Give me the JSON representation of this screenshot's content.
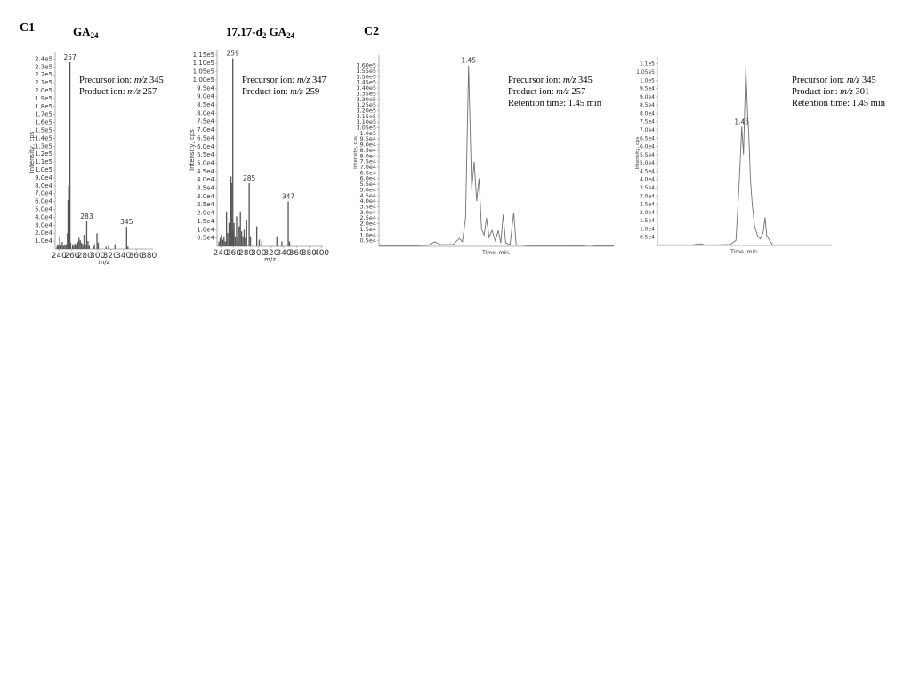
{
  "panels": {
    "c1": {
      "label": "C1"
    },
    "c2": {
      "label": "C2"
    }
  },
  "titles": {
    "ga24": {
      "main": "GA",
      "sub": "24"
    },
    "d2ga24": {
      "prefix": "17,17-d",
      "sub1": "2",
      "mid": " GA",
      "sub2": "24"
    }
  },
  "annotations": [
    {
      "lines": [
        {
          "prefix": "Precursor ion: ",
          "em": "m/z",
          "value": " 345"
        },
        {
          "prefix": "Product ion: ",
          "em": "m/z",
          "value": " 257"
        }
      ]
    },
    {
      "lines": [
        {
          "prefix": "Precursor ion: ",
          "em": "m/z",
          "value": " 347"
        },
        {
          "prefix": "Product ion: ",
          "em": "m/z",
          "value": " 259"
        }
      ]
    },
    {
      "lines": [
        {
          "prefix": "Precursor ion: ",
          "em": "m/z",
          "value": " 345"
        },
        {
          "prefix": "Product ion: ",
          "em": "m/z",
          "value": " 257"
        },
        {
          "prefix": "Retention time: 1.45 min",
          "em": "",
          "value": ""
        }
      ]
    },
    {
      "lines": [
        {
          "prefix": "Precursor ion: ",
          "em": "m/z",
          "value": " 345"
        },
        {
          "prefix": "Product ion: ",
          "em": "m/z",
          "value": " 301"
        },
        {
          "prefix": "Retention time: 1.45 min",
          "em": "",
          "value": ""
        }
      ]
    }
  ],
  "chart_data": [
    {
      "type": "bar",
      "color": "#555555",
      "xlabel": "m/z",
      "ylabel": "Intensity, cps",
      "xlim": [
        234,
        386
      ],
      "ylim": [
        0,
        245000
      ],
      "x_ticks": [
        240,
        260,
        280,
        300,
        320,
        340,
        360,
        380
      ],
      "y_ticks": [
        {
          "v": 10000,
          "label": "1.0e4"
        },
        {
          "v": 20000,
          "label": "2.0e4"
        },
        {
          "v": 30000,
          "label": "3.0e4"
        },
        {
          "v": 40000,
          "label": "4.0e4"
        },
        {
          "v": 50000,
          "label": "5.0e4"
        },
        {
          "v": 60000,
          "label": "6.0e4"
        },
        {
          "v": 70000,
          "label": "7.0e4"
        },
        {
          "v": 80000,
          "label": "8.0e4"
        },
        {
          "v": 90000,
          "label": "9.0e4"
        },
        {
          "v": 100000,
          "label": "1.0e5"
        },
        {
          "v": 110000,
          "label": "1.1e5"
        },
        {
          "v": 120000,
          "label": "1.2e5"
        },
        {
          "v": 130000,
          "label": "1.3e5"
        },
        {
          "v": 140000,
          "label": "1.4e5"
        },
        {
          "v": 150000,
          "label": "1.5e5"
        },
        {
          "v": 160000,
          "label": "1.6e5"
        },
        {
          "v": 170000,
          "label": "1.7e5"
        },
        {
          "v": 180000,
          "label": "1.8e5"
        },
        {
          "v": 190000,
          "label": "1.9e5"
        },
        {
          "v": 200000,
          "label": "2.0e5"
        },
        {
          "v": 210000,
          "label": "2.1e5"
        },
        {
          "v": 220000,
          "label": "2.2e5"
        },
        {
          "v": 230000,
          "label": "2.3e5"
        },
        {
          "v": 240000,
          "label": "2.4e5"
        }
      ],
      "peaks": [
        {
          "x": 237,
          "y": 3000
        },
        {
          "x": 238,
          "y": 6000
        },
        {
          "x": 239,
          "y": 4000
        },
        {
          "x": 241,
          "y": 16000
        },
        {
          "x": 243,
          "y": 5000
        },
        {
          "x": 245,
          "y": 9000
        },
        {
          "x": 247,
          "y": 4000
        },
        {
          "x": 249,
          "y": 5000
        },
        {
          "x": 251,
          "y": 6000
        },
        {
          "x": 253,
          "y": 20000
        },
        {
          "x": 254,
          "y": 62000
        },
        {
          "x": 255,
          "y": 80000
        },
        {
          "x": 256,
          "y": 12000
        },
        {
          "x": 257,
          "y": 236000
        },
        {
          "x": 258,
          "y": 8000
        },
        {
          "x": 261,
          "y": 6000
        },
        {
          "x": 263,
          "y": 4000
        },
        {
          "x": 265,
          "y": 7000
        },
        {
          "x": 267,
          "y": 5000
        },
        {
          "x": 269,
          "y": 9000
        },
        {
          "x": 271,
          "y": 14000
        },
        {
          "x": 273,
          "y": 11000
        },
        {
          "x": 275,
          "y": 8000
        },
        {
          "x": 277,
          "y": 6000
        },
        {
          "x": 279,
          "y": 18000
        },
        {
          "x": 281,
          "y": 5000
        },
        {
          "x": 283,
          "y": 35000
        },
        {
          "x": 285,
          "y": 10000
        },
        {
          "x": 287,
          "y": 4000
        },
        {
          "x": 293,
          "y": 3000
        },
        {
          "x": 295,
          "y": 6000
        },
        {
          "x": 299,
          "y": 20000
        },
        {
          "x": 301,
          "y": 8000
        },
        {
          "x": 313,
          "y": 3000
        },
        {
          "x": 317,
          "y": 4000
        },
        {
          "x": 327,
          "y": 6000
        },
        {
          "x": 345,
          "y": 28000
        },
        {
          "x": 347,
          "y": 3000
        }
      ],
      "peak_labels": [
        {
          "x": 257,
          "y": 236000,
          "text": "257"
        },
        {
          "x": 283,
          "y": 35000,
          "text": "283"
        },
        {
          "x": 345,
          "y": 28000,
          "text": "345"
        }
      ]
    },
    {
      "type": "bar",
      "color": "#555555",
      "xlabel": "m/z",
      "ylabel": "Intensity, cps",
      "xlim": [
        234,
        402
      ],
      "ylim": [
        0,
        116000
      ],
      "x_ticks": [
        240,
        260,
        280,
        300,
        320,
        340,
        360,
        380,
        400
      ],
      "y_ticks": [
        {
          "v": 5000,
          "label": "0.5e4"
        },
        {
          "v": 10000,
          "label": "1.0e4"
        },
        {
          "v": 15000,
          "label": "1.5e4"
        },
        {
          "v": 20000,
          "label": "2.0e4"
        },
        {
          "v": 25000,
          "label": "2.5e4"
        },
        {
          "v": 30000,
          "label": "3.0e4"
        },
        {
          "v": 35000,
          "label": "3.5e4"
        },
        {
          "v": 40000,
          "label": "4.0e4"
        },
        {
          "v": 45000,
          "label": "4.5e4"
        },
        {
          "v": 50000,
          "label": "5.0e4"
        },
        {
          "v": 55000,
          "label": "5.5e4"
        },
        {
          "v": 60000,
          "label": "6.0e4"
        },
        {
          "v": 65000,
          "label": "6.5e4"
        },
        {
          "v": 70000,
          "label": "7.0e4"
        },
        {
          "v": 75000,
          "label": "7.5e4"
        },
        {
          "v": 80000,
          "label": "8.0e4"
        },
        {
          "v": 85000,
          "label": "8.5e4"
        },
        {
          "v": 90000,
          "label": "9.0e4"
        },
        {
          "v": 95000,
          "label": "9.5e4"
        },
        {
          "v": 100000,
          "label": "1.00e5"
        },
        {
          "v": 105000,
          "label": "1.05e5"
        },
        {
          "v": 110000,
          "label": "1.10e5"
        },
        {
          "v": 115000,
          "label": "1.15e5"
        }
      ],
      "peaks": [
        {
          "x": 237,
          "y": 3000
        },
        {
          "x": 239,
          "y": 5000
        },
        {
          "x": 241,
          "y": 7000
        },
        {
          "x": 243,
          "y": 4000
        },
        {
          "x": 245,
          "y": 6000
        },
        {
          "x": 247,
          "y": 3000
        },
        {
          "x": 249,
          "y": 21000
        },
        {
          "x": 251,
          "y": 8000
        },
        {
          "x": 253,
          "y": 14000
        },
        {
          "x": 255,
          "y": 31000
        },
        {
          "x": 256,
          "y": 42000
        },
        {
          "x": 257,
          "y": 38000
        },
        {
          "x": 258,
          "y": 11000
        },
        {
          "x": 259,
          "y": 113000
        },
        {
          "x": 260,
          "y": 9000
        },
        {
          "x": 261,
          "y": 14000
        },
        {
          "x": 263,
          "y": 6000
        },
        {
          "x": 265,
          "y": 18000
        },
        {
          "x": 267,
          "y": 5000
        },
        {
          "x": 269,
          "y": 12000
        },
        {
          "x": 271,
          "y": 21000
        },
        {
          "x": 273,
          "y": 9000
        },
        {
          "x": 275,
          "y": 6000
        },
        {
          "x": 277,
          "y": 10000
        },
        {
          "x": 279,
          "y": 5000
        },
        {
          "x": 281,
          "y": 16000
        },
        {
          "x": 285,
          "y": 38000
        },
        {
          "x": 287,
          "y": 6000
        },
        {
          "x": 297,
          "y": 12000
        },
        {
          "x": 301,
          "y": 4000
        },
        {
          "x": 305,
          "y": 3000
        },
        {
          "x": 329,
          "y": 6000
        },
        {
          "x": 337,
          "y": 3000
        },
        {
          "x": 347,
          "y": 27000
        },
        {
          "x": 349,
          "y": 3000
        }
      ],
      "peak_labels": [
        {
          "x": 259,
          "y": 113000,
          "text": "259"
        },
        {
          "x": 285,
          "y": 38000,
          "text": "285"
        },
        {
          "x": 347,
          "y": 27000,
          "text": "347"
        }
      ]
    },
    {
      "type": "line",
      "color": "#707070",
      "xlabel": "Time, min.",
      "ylabel": "Intensity, cps",
      "xlim": [
        0.0,
        3.8
      ],
      "ylim": [
        0,
        166000
      ],
      "x_ticks": [],
      "y_ticks": [
        {
          "v": 5000,
          "label": "0.5e4"
        },
        {
          "v": 10000,
          "label": "1.0e4"
        },
        {
          "v": 15000,
          "label": "1.5e4"
        },
        {
          "v": 20000,
          "label": "2.0e4"
        },
        {
          "v": 25000,
          "label": "2.5e4"
        },
        {
          "v": 30000,
          "label": "3.0e4"
        },
        {
          "v": 35000,
          "label": "3.5e4"
        },
        {
          "v": 40000,
          "label": "4.0e4"
        },
        {
          "v": 45000,
          "label": "4.5e4"
        },
        {
          "v": 50000,
          "label": "5.0e4"
        },
        {
          "v": 55000,
          "label": "5.5e4"
        },
        {
          "v": 60000,
          "label": "6.0e4"
        },
        {
          "v": 65000,
          "label": "6.5e4"
        },
        {
          "v": 70000,
          "label": "7.0e4"
        },
        {
          "v": 75000,
          "label": "7.5e4"
        },
        {
          "v": 80000,
          "label": "8.0e4"
        },
        {
          "v": 85000,
          "label": "8.5e4"
        },
        {
          "v": 90000,
          "label": "9.0e4"
        },
        {
          "v": 95000,
          "label": "9.5e4"
        },
        {
          "v": 100000,
          "label": "1.0e5"
        },
        {
          "v": 105000,
          "label": "1.05e5"
        },
        {
          "v": 110000,
          "label": "1.10e5"
        },
        {
          "v": 115000,
          "label": "1.15e5"
        },
        {
          "v": 120000,
          "label": "1.20e5"
        },
        {
          "v": 125000,
          "label": "1.25e5"
        },
        {
          "v": 130000,
          "label": "1.30e5"
        },
        {
          "v": 135000,
          "label": "1.35e5"
        },
        {
          "v": 140000,
          "label": "1.40e5"
        },
        {
          "v": 145000,
          "label": "1.45e5"
        },
        {
          "v": 150000,
          "label": "1.50e5"
        },
        {
          "v": 155000,
          "label": "1.55e5"
        },
        {
          "v": 160000,
          "label": "1.60e5"
        }
      ],
      "points": [
        {
          "x": 0.0,
          "y": 600
        },
        {
          "x": 0.6,
          "y": 600
        },
        {
          "x": 0.8,
          "y": 1000
        },
        {
          "x": 0.9,
          "y": 4000
        },
        {
          "x": 1.0,
          "y": 1500
        },
        {
          "x": 1.2,
          "y": 1500
        },
        {
          "x": 1.3,
          "y": 7000
        },
        {
          "x": 1.35,
          "y": 4000
        },
        {
          "x": 1.4,
          "y": 25000
        },
        {
          "x": 1.45,
          "y": 160000
        },
        {
          "x": 1.5,
          "y": 50000
        },
        {
          "x": 1.54,
          "y": 75000
        },
        {
          "x": 1.58,
          "y": 40000
        },
        {
          "x": 1.62,
          "y": 60000
        },
        {
          "x": 1.66,
          "y": 15000
        },
        {
          "x": 1.7,
          "y": 10000
        },
        {
          "x": 1.74,
          "y": 25000
        },
        {
          "x": 1.78,
          "y": 8000
        },
        {
          "x": 1.83,
          "y": 14000
        },
        {
          "x": 1.88,
          "y": 5000
        },
        {
          "x": 1.93,
          "y": 14000
        },
        {
          "x": 1.97,
          "y": 3000
        },
        {
          "x": 2.01,
          "y": 28000
        },
        {
          "x": 2.05,
          "y": 3000
        },
        {
          "x": 2.12,
          "y": 1500
        },
        {
          "x": 2.18,
          "y": 30000
        },
        {
          "x": 2.22,
          "y": 1500
        },
        {
          "x": 2.4,
          "y": 700
        },
        {
          "x": 3.3,
          "y": 600
        },
        {
          "x": 3.4,
          "y": 1200
        },
        {
          "x": 3.5,
          "y": 600
        },
        {
          "x": 3.8,
          "y": 600
        }
      ],
      "peak_labels": [
        {
          "x": 1.45,
          "y": 160000,
          "text": "1.45"
        }
      ]
    },
    {
      "type": "line",
      "color": "#707070",
      "xlabel": "Time, min.",
      "ylabel": "Intensity, cps",
      "xlim": [
        0.0,
        3.0
      ],
      "ylim": [
        0,
        112000
      ],
      "x_ticks": [],
      "y_ticks": [
        {
          "v": 5000,
          "label": "0.5e4"
        },
        {
          "v": 10000,
          "label": "1.0e4"
        },
        {
          "v": 15000,
          "label": "1.5e4"
        },
        {
          "v": 20000,
          "label": "2.0e4"
        },
        {
          "v": 25000,
          "label": "2.5e4"
        },
        {
          "v": 30000,
          "label": "3.0e4"
        },
        {
          "v": 35000,
          "label": "3.5e4"
        },
        {
          "v": 40000,
          "label": "4.0e4"
        },
        {
          "v": 45000,
          "label": "4.5e4"
        },
        {
          "v": 50000,
          "label": "5.0e4"
        },
        {
          "v": 55000,
          "label": "5.5e4"
        },
        {
          "v": 60000,
          "label": "6.0e4"
        },
        {
          "v": 65000,
          "label": "6.5e4"
        },
        {
          "v": 70000,
          "label": "7.0e4"
        },
        {
          "v": 75000,
          "label": "7.5e4"
        },
        {
          "v": 80000,
          "label": "8.0e4"
        },
        {
          "v": 85000,
          "label": "8.5e4"
        },
        {
          "v": 90000,
          "label": "9.0e4"
        },
        {
          "v": 95000,
          "label": "9.5e4"
        },
        {
          "v": 100000,
          "label": "1.0e5"
        },
        {
          "v": 105000,
          "label": "1.05e5"
        },
        {
          "v": 110000,
          "label": "1.1e5"
        }
      ],
      "points": [
        {
          "x": 0.0,
          "y": 400
        },
        {
          "x": 0.6,
          "y": 400
        },
        {
          "x": 0.75,
          "y": 1000
        },
        {
          "x": 0.8,
          "y": 400
        },
        {
          "x": 1.0,
          "y": 400
        },
        {
          "x": 1.25,
          "y": 600
        },
        {
          "x": 1.35,
          "y": 3000
        },
        {
          "x": 1.41,
          "y": 40000
        },
        {
          "x": 1.45,
          "y": 72000
        },
        {
          "x": 1.48,
          "y": 55000
        },
        {
          "x": 1.52,
          "y": 108000
        },
        {
          "x": 1.55,
          "y": 80000
        },
        {
          "x": 1.57,
          "y": 68000
        },
        {
          "x": 1.6,
          "y": 40000
        },
        {
          "x": 1.63,
          "y": 25000
        },
        {
          "x": 1.67,
          "y": 12000
        },
        {
          "x": 1.72,
          "y": 6000
        },
        {
          "x": 1.77,
          "y": 4000
        },
        {
          "x": 1.82,
          "y": 8000
        },
        {
          "x": 1.85,
          "y": 17000
        },
        {
          "x": 1.88,
          "y": 6000
        },
        {
          "x": 1.93,
          "y": 3000
        },
        {
          "x": 1.98,
          "y": 400
        },
        {
          "x": 2.2,
          "y": 400
        },
        {
          "x": 3.0,
          "y": 400
        }
      ],
      "peak_labels": [
        {
          "x": 1.45,
          "y": 72000,
          "text": "1.45"
        }
      ]
    }
  ]
}
